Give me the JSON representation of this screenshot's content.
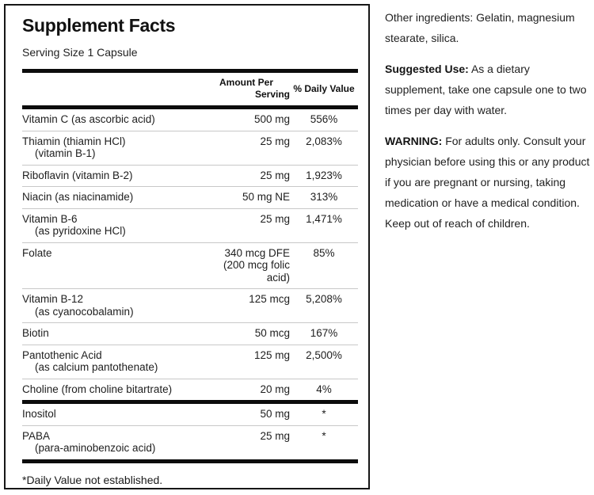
{
  "facts": {
    "title": "Supplement Facts",
    "serving_size": "Serving Size 1 Capsule",
    "columns": {
      "amount_line1": "Amount Per",
      "amount_line2": "Serving",
      "daily_value": "% Daily Value"
    },
    "main_rows": [
      {
        "name": "Vitamin C (as ascorbic acid)",
        "sub": "",
        "amount": "500 mg",
        "dv": "556%"
      },
      {
        "name": "Thiamin (thiamin HCl)",
        "sub": "(vitamin B-1)",
        "amount": "25 mg",
        "dv": "2,083%"
      },
      {
        "name": "Riboflavin (vitamin B-2)",
        "sub": "",
        "amount": "25 mg",
        "dv": "1,923%"
      },
      {
        "name": "Niacin (as niacinamide)",
        "sub": "",
        "amount": "50 mg NE",
        "dv": "313%"
      },
      {
        "name": "Vitamin B-6",
        "sub": "(as pyridoxine HCl)",
        "amount": "25 mg",
        "dv": "1,471%"
      },
      {
        "name": "Folate",
        "sub": "",
        "amount": "340 mcg DFE (200 mcg folic acid)",
        "dv": "85%"
      },
      {
        "name": "Vitamin B-12",
        "sub": "(as cyanocobalamin)",
        "amount": "125 mcg",
        "dv": "5,208%"
      },
      {
        "name": "Biotin",
        "sub": "",
        "amount": "50 mcg",
        "dv": "167%"
      },
      {
        "name": "Pantothenic Acid",
        "sub": "(as calcium pantothenate)",
        "amount": "125 mg",
        "dv": "2,500%"
      },
      {
        "name": "Choline (from choline bitartrate)",
        "sub": "",
        "amount": "20 mg",
        "dv": "4%"
      }
    ],
    "secondary_rows": [
      {
        "name": "Inositol",
        "sub": "",
        "amount": "50 mg",
        "dv": "*"
      },
      {
        "name": "PABA",
        "sub": "(para-aminobenzoic acid)",
        "amount": "25 mg",
        "dv": "*"
      }
    ],
    "footnote": "*Daily Value not established."
  },
  "side": {
    "paragraphs": [
      {
        "label": "",
        "text": "Other ingredients: Gelatin, magnesium stearate, silica."
      },
      {
        "label": "Suggested Use:",
        "text": "As a dietary supplement, take one capsule one to two times per day with water."
      },
      {
        "label": "WARNING:",
        "text": "For adults only. Consult your physician before using this or any product if you are pregnant or nursing, taking medication or have a medical condition. Keep out of reach of children."
      }
    ]
  },
  "colors": {
    "text": "#1e1e1e",
    "panel_border": "#161616",
    "thick_bar": "#0c0c0c",
    "row_separator": "#c8c8c8",
    "background": "#ffffff"
  }
}
